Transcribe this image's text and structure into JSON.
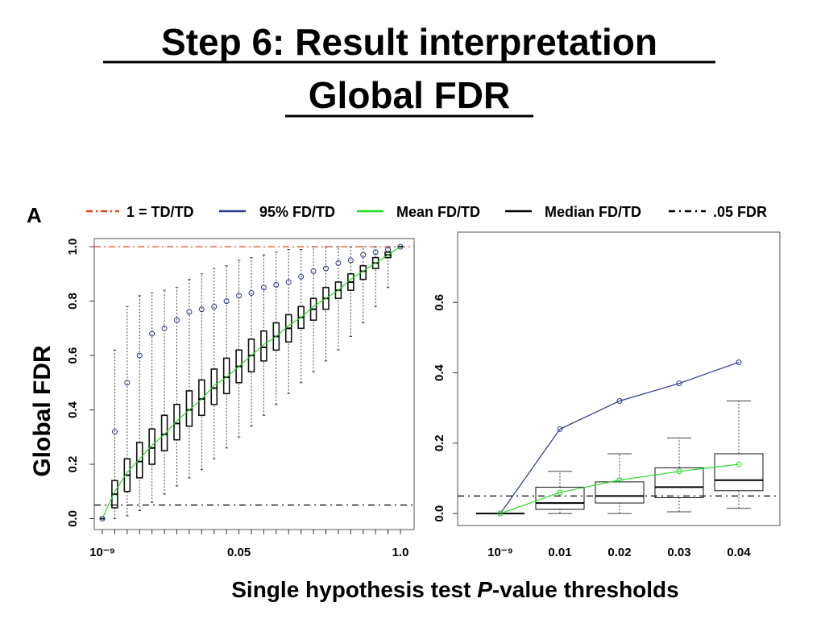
{
  "title_lines": [
    "Step 6: Result interpretation",
    "Global FDR"
  ],
  "panel_label": "A",
  "y_label": "Global FDR",
  "x_label": {
    "before": "Single hypothesis test ",
    "italic": "P",
    "after": "-value thresholds"
  },
  "legend": [
    {
      "name": "1 = TD/TD",
      "color": "#e8401c",
      "dash": "8 4 2 4"
    },
    {
      "name": "95% FD/TD",
      "color": "#2b3990",
      "dash": ""
    },
    {
      "name": "Mean FD/TD",
      "color": "#22dd22",
      "dash": ""
    },
    {
      "name": "Median FD/TD",
      "color": "#000000",
      "dash": ""
    },
    {
      "name": ".05 FDR",
      "color": "#000000",
      "dash": "8 5 2 5"
    }
  ],
  "chart_data": [
    {
      "type": "box",
      "categories": [
        "10⁻⁹",
        null,
        null,
        null,
        null,
        null,
        null,
        null,
        null,
        null,
        null,
        "0.05",
        null,
        null,
        null,
        null,
        null,
        null,
        null,
        null,
        null,
        null,
        null,
        null,
        "1.0"
      ],
      "stats": {
        "min": [
          0,
          0,
          0.01,
          0.03,
          0.06,
          0.09,
          0.12,
          0.15,
          0.18,
          0.22,
          0.26,
          0.3,
          0.34,
          0.38,
          0.42,
          0.46,
          0.5,
          0.54,
          0.58,
          0.62,
          0.67,
          0.72,
          0.78,
          0.85,
          1.0
        ],
        "q1": [
          0,
          0.04,
          0.1,
          0.15,
          0.2,
          0.25,
          0.29,
          0.34,
          0.38,
          0.42,
          0.46,
          0.5,
          0.54,
          0.58,
          0.62,
          0.65,
          0.7,
          0.73,
          0.77,
          0.81,
          0.84,
          0.88,
          0.92,
          0.96,
          1.0
        ],
        "median": [
          0,
          0.09,
          0.16,
          0.21,
          0.26,
          0.31,
          0.35,
          0.4,
          0.44,
          0.48,
          0.52,
          0.56,
          0.6,
          0.63,
          0.67,
          0.7,
          0.74,
          0.77,
          0.81,
          0.84,
          0.87,
          0.91,
          0.94,
          0.97,
          1.0
        ],
        "q3": [
          0,
          0.14,
          0.22,
          0.28,
          0.33,
          0.38,
          0.42,
          0.47,
          0.51,
          0.55,
          0.59,
          0.62,
          0.66,
          0.69,
          0.72,
          0.75,
          0.78,
          0.81,
          0.85,
          0.87,
          0.9,
          0.93,
          0.96,
          0.98,
          1.0
        ],
        "max": [
          0,
          0.62,
          0.78,
          0.82,
          0.83,
          0.84,
          0.85,
          0.88,
          0.9,
          0.92,
          0.93,
          0.95,
          0.96,
          0.97,
          0.98,
          0.99,
          0.99,
          1.0,
          1.0,
          1.0,
          1.0,
          1.0,
          1.0,
          1.0,
          1.0
        ]
      },
      "series": [
        {
          "color": "#2b3990",
          "line": false,
          "points": true,
          "values": [
            0,
            0.32,
            0.5,
            0.6,
            0.68,
            0.7,
            0.73,
            0.76,
            0.77,
            0.78,
            0.8,
            0.82,
            0.83,
            0.85,
            0.86,
            0.87,
            0.89,
            0.91,
            0.92,
            0.94,
            0.95,
            0.97,
            0.98,
            0.99,
            1.0
          ]
        },
        {
          "color": "#22dd22",
          "line": true,
          "points": false,
          "values": [
            0,
            0.1,
            0.17,
            0.22,
            0.27,
            0.31,
            0.36,
            0.4,
            0.44,
            0.49,
            0.52,
            0.56,
            0.6,
            0.64,
            0.67,
            0.71,
            0.74,
            0.78,
            0.81,
            0.84,
            0.88,
            0.91,
            0.94,
            0.97,
            1.0
          ]
        }
      ],
      "hlines": [
        {
          "value": 1,
          "color": "#e8401c",
          "dash": "8 4 2 4"
        },
        {
          "value": 0.05,
          "color": "#000000",
          "dash": "8 5 2 5"
        }
      ],
      "ylim": [
        -0.04,
        1.03
      ],
      "yticks": [
        {
          "value": 0,
          "label": "0.0"
        },
        0.2,
        0.4,
        0.6,
        0.8,
        {
          "value": 1,
          "label": "1.0"
        }
      ]
    },
    {
      "type": "box",
      "categories": [
        "10⁻⁹",
        "0.01",
        "0.02",
        "0.03",
        "0.04"
      ],
      "stats": {
        "min": [
          0,
          0,
          0,
          0.005,
          0.015
        ],
        "q1": [
          0,
          0.012,
          0.03,
          0.045,
          0.065
        ],
        "median": [
          0,
          0.03,
          0.05,
          0.075,
          0.095
        ],
        "q3": [
          0,
          0.075,
          0.09,
          0.13,
          0.17
        ],
        "max": [
          0,
          0.12,
          0.17,
          0.215,
          0.32
        ]
      },
      "series": [
        {
          "color": "#2b3990",
          "line": true,
          "points": true,
          "values": [
            0,
            0.24,
            0.32,
            0.37,
            0.43
          ]
        },
        {
          "color": "#22dd22",
          "line": true,
          "points": true,
          "values": [
            0,
            0.06,
            0.095,
            0.12,
            0.14
          ]
        }
      ],
      "hlines": [
        {
          "value": 0.05,
          "color": "#000000",
          "dash": "8 5 2 5"
        }
      ],
      "ylim": [
        -0.034,
        0.8
      ],
      "yticks": [
        {
          "value": 0,
          "label": "0.0"
        },
        0.2,
        0.4,
        0.6
      ]
    }
  ]
}
